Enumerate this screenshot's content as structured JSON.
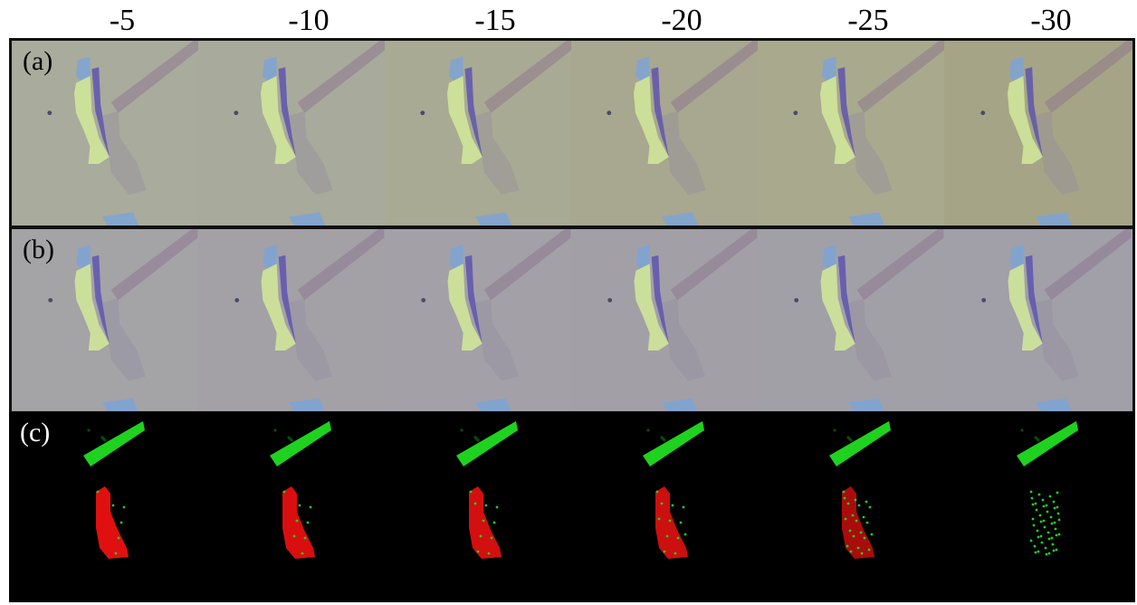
{
  "column_labels": [
    "-5",
    "-10",
    "-15",
    "-20",
    "-25",
    "-30"
  ],
  "rows": [
    {
      "label": "(a)",
      "label_color": "#000000",
      "tile_colors": [
        "#a9ab9c",
        "#a8aa9c",
        "#a9aa93",
        "#a8a790",
        "#a9a98e",
        "#a6a486"
      ]
    },
    {
      "label": "(b)",
      "label_color": "#000000",
      "tile_colors": [
        "#a4a3a6",
        "#a3a1a6",
        "#a3a1a7",
        "#a2a0a6",
        "#a2a0a7",
        "#a19fa8"
      ]
    },
    {
      "label": "(c)",
      "label_color": "#ffffff",
      "tile_colors": [
        "#000000",
        "#000000",
        "#000000",
        "#000000",
        "#000000",
        "#000000"
      ],
      "red_fraction": [
        1.0,
        0.95,
        0.9,
        0.85,
        0.6,
        0.0
      ]
    }
  ],
  "colors": {
    "flake_blue": "#7ea3d6",
    "flake_yellow": "#cfe59a",
    "strip_purple": "#5a4fb0",
    "ribbon_purple": "#8a6f8e",
    "shadow": "#8e8aa0",
    "green_region": "#1fd21f",
    "red_region": "#e01010"
  }
}
